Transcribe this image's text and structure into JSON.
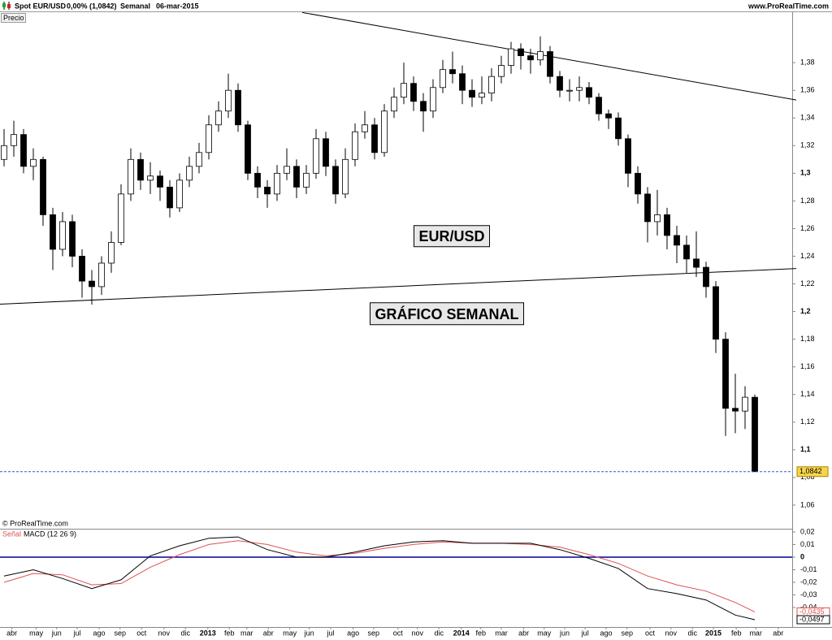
{
  "header": {
    "symbol": "Spot EUR/USD",
    "change": "0,00% (1,0842)",
    "period": "Semanal",
    "date": "06-mar-2015",
    "site": "www.ProRealTime.com",
    "pane_label": "Precio",
    "copyright": "© ProRealTime.com"
  },
  "chart_data": [
    {
      "type": "candlestick",
      "xlim": [
        -0.4167,
        80.8333
      ],
      "ylim": [
        1.0435,
        1.4165
      ],
      "yticks": [
        {
          "value": 1.06,
          "label": "1,06"
        },
        {
          "value": 1.08,
          "label": "1,08"
        },
        {
          "value": 1.1,
          "label": "1,1"
        },
        {
          "value": 1.12,
          "label": "1,12"
        },
        {
          "value": 1.14,
          "label": "1,14"
        },
        {
          "value": 1.16,
          "label": "1,16"
        },
        {
          "value": 1.18,
          "label": "1,18"
        },
        {
          "value": 1.2,
          "label": "1,2"
        },
        {
          "value": 1.22,
          "label": "1,22"
        },
        {
          "value": 1.24,
          "label": "1,24"
        },
        {
          "value": 1.26,
          "label": "1,26"
        },
        {
          "value": 1.28,
          "label": "1,28"
        },
        {
          "value": 1.3,
          "label": "1,3"
        },
        {
          "value": 1.32,
          "label": "1,32"
        },
        {
          "value": 1.34,
          "label": "1,34"
        },
        {
          "value": 1.36,
          "label": "1,36"
        },
        {
          "value": 1.38,
          "label": "1,38"
        }
      ],
      "up_color": "#ffffff",
      "down_color": "#000000",
      "open": [
        1.31,
        1.32,
        1.328,
        1.305,
        1.31,
        1.27,
        1.245,
        1.265,
        1.24,
        1.222,
        1.218,
        1.235,
        1.25,
        1.285,
        1.31,
        1.295,
        1.298,
        1.29,
        1.275,
        1.295,
        1.305,
        1.315,
        1.335,
        1.345,
        1.36,
        1.335,
        1.3,
        1.29,
        1.285,
        1.3,
        1.305,
        1.29,
        1.3,
        1.325,
        1.305,
        1.285,
        1.31,
        1.33,
        1.335,
        1.315,
        1.345,
        1.355,
        1.365,
        1.352,
        1.345,
        1.362,
        1.375,
        1.372,
        1.36,
        1.355,
        1.358,
        1.37,
        1.378,
        1.39,
        1.385,
        1.382,
        1.388,
        1.37,
        1.36,
        1.36,
        1.362,
        1.355,
        1.343,
        1.34,
        1.325,
        1.3,
        1.285,
        1.265,
        1.27,
        1.255,
        1.248,
        1.238,
        1.232,
        1.218,
        1.18,
        1.13,
        1.128,
        1.138
      ],
      "high": [
        1.332,
        1.338,
        1.332,
        1.318,
        1.312,
        1.275,
        1.272,
        1.27,
        1.245,
        1.23,
        1.24,
        1.258,
        1.292,
        1.318,
        1.315,
        1.308,
        1.302,
        1.295,
        1.3,
        1.312,
        1.322,
        1.342,
        1.352,
        1.372,
        1.365,
        1.338,
        1.305,
        1.295,
        1.306,
        1.318,
        1.31,
        1.306,
        1.332,
        1.33,
        1.31,
        1.318,
        1.336,
        1.345,
        1.34,
        1.35,
        1.362,
        1.38,
        1.37,
        1.358,
        1.368,
        1.382,
        1.388,
        1.378,
        1.368,
        1.37,
        1.376,
        1.385,
        1.395,
        1.394,
        1.39,
        1.399,
        1.392,
        1.374,
        1.368,
        1.37,
        1.366,
        1.358,
        1.346,
        1.344,
        1.328,
        1.305,
        1.29,
        1.288,
        1.275,
        1.262,
        1.255,
        1.258,
        1.236,
        1.222,
        1.185,
        1.155,
        1.146,
        1.14
      ],
      "low": [
        1.305,
        1.312,
        1.3,
        1.295,
        1.262,
        1.23,
        1.24,
        1.232,
        1.21,
        1.205,
        1.212,
        1.228,
        1.248,
        1.28,
        1.288,
        1.285,
        1.28,
        1.268,
        1.272,
        1.29,
        1.3,
        1.31,
        1.33,
        1.34,
        1.33,
        1.295,
        1.282,
        1.275,
        1.28,
        1.295,
        1.282,
        1.285,
        1.296,
        1.298,
        1.278,
        1.282,
        1.305,
        1.325,
        1.31,
        1.312,
        1.34,
        1.35,
        1.345,
        1.33,
        1.34,
        1.358,
        1.365,
        1.35,
        1.348,
        1.35,
        1.352,
        1.365,
        1.372,
        1.375,
        1.372,
        1.378,
        1.365,
        1.355,
        1.352,
        1.352,
        1.35,
        1.338,
        1.332,
        1.32,
        1.29,
        1.278,
        1.25,
        1.255,
        1.245,
        1.235,
        1.228,
        1.225,
        1.21,
        1.17,
        1.11,
        1.112,
        1.115,
        1.0842
      ],
      "close": [
        1.32,
        1.328,
        1.305,
        1.31,
        1.27,
        1.245,
        1.265,
        1.24,
        1.222,
        1.218,
        1.235,
        1.25,
        1.285,
        1.31,
        1.295,
        1.298,
        1.29,
        1.275,
        1.295,
        1.305,
        1.315,
        1.335,
        1.345,
        1.36,
        1.335,
        1.3,
        1.29,
        1.285,
        1.3,
        1.305,
        1.29,
        1.3,
        1.325,
        1.305,
        1.285,
        1.31,
        1.33,
        1.335,
        1.315,
        1.345,
        1.355,
        1.365,
        1.352,
        1.345,
        1.362,
        1.375,
        1.372,
        1.36,
        1.355,
        1.358,
        1.37,
        1.378,
        1.39,
        1.385,
        1.382,
        1.388,
        1.37,
        1.36,
        1.36,
        1.362,
        1.355,
        1.343,
        1.34,
        1.325,
        1.3,
        1.285,
        1.265,
        1.27,
        1.255,
        1.248,
        1.238,
        1.232,
        1.218,
        1.18,
        1.13,
        1.128,
        1.138,
        1.0842
      ],
      "last_price": {
        "value": 1.0842,
        "label": "1,0842",
        "color": "#3355cc"
      },
      "trendlines": [
        {
          "x": [
            30.58,
            81.25
          ],
          "y": [
            1.4163,
            1.353
          ]
        },
        {
          "x": [
            -0.4167,
            81.25
          ],
          "y": [
            1.2053,
            1.2311
          ]
        }
      ],
      "annotations": [
        "EUR/USD",
        "GRÁFICO SEMANAL"
      ]
    },
    {
      "type": "line",
      "xlim": [
        -0.4167,
        80.8333
      ],
      "ylim": [
        -0.0555,
        0.0219
      ],
      "yticks": [
        {
          "value": 0.02,
          "label": "0,02"
        },
        {
          "value": 0.01,
          "label": "0,01"
        },
        0,
        {
          "value": -0.01,
          "label": "-0,01"
        },
        {
          "value": -0.02,
          "label": "-0,02"
        },
        {
          "value": -0.03,
          "label": "-0,03"
        },
        {
          "value": -0.04,
          "label": "-0,04"
        }
      ],
      "xticks": [
        {
          "value": 0.8,
          "label": "abr"
        },
        {
          "value": 3.3,
          "label": "may"
        },
        {
          "value": 5.4,
          "label": "jun"
        },
        {
          "value": 7.5,
          "label": "jul"
        },
        {
          "value": 9.75,
          "label": "ago"
        },
        {
          "value": 11.9,
          "label": "sep"
        },
        {
          "value": 14.1,
          "label": "oct"
        },
        {
          "value": 16.4,
          "label": "nov"
        },
        {
          "value": 18.6,
          "label": "dic"
        },
        {
          "value": 20.9,
          "label": "2013"
        },
        {
          "value": 23.1,
          "label": "feb"
        },
        {
          "value": 24.9,
          "label": "mar"
        },
        {
          "value": 27.1,
          "label": "abr"
        },
        {
          "value": 29.3,
          "label": "may"
        },
        {
          "value": 31.3,
          "label": "jun"
        },
        {
          "value": 33.5,
          "label": "jul"
        },
        {
          "value": 35.8,
          "label": "ago"
        },
        {
          "value": 37.9,
          "label": "sep"
        },
        {
          "value": 40.4,
          "label": "oct"
        },
        {
          "value": 42.4,
          "label": "nov"
        },
        {
          "value": 44.6,
          "label": "dic"
        },
        {
          "value": 46.9,
          "label": "2014"
        },
        {
          "value": 48.9,
          "label": "feb"
        },
        {
          "value": 51,
          "label": "mar"
        },
        {
          "value": 53.3,
          "label": "abr"
        },
        {
          "value": 55.4,
          "label": "may"
        },
        {
          "value": 57.5,
          "label": "jun"
        },
        {
          "value": 59.6,
          "label": "jul"
        },
        {
          "value": 61.75,
          "label": "ago"
        },
        {
          "value": 63.9,
          "label": "sep"
        },
        {
          "value": 66.25,
          "label": "oct"
        },
        {
          "value": 68.4,
          "label": "nov"
        },
        {
          "value": 70.6,
          "label": "dic"
        },
        {
          "value": 72.75,
          "label": "2015"
        },
        {
          "value": 75.1,
          "label": "feb"
        },
        {
          "value": 77.1,
          "label": "mar"
        },
        {
          "value": 79.4,
          "label": "abr"
        }
      ],
      "zero_line": {
        "value": 0,
        "color": "#000099"
      },
      "x": [
        0,
        3,
        6,
        9,
        12,
        15,
        18,
        21,
        24,
        27,
        30,
        33,
        36,
        39,
        42,
        45,
        48,
        51,
        54,
        57,
        60,
        63,
        66,
        69,
        72,
        75,
        77
      ],
      "series": [
        {
          "name": "Señal",
          "color": "#e05050",
          "values": [
            -0.02,
            -0.013,
            -0.014,
            -0.022,
            -0.021,
            -0.008,
            0.002,
            0.01,
            0.013,
            0.01,
            0.004,
            0.001,
            0.003,
            0.007,
            0.01,
            0.012,
            0.011,
            0.011,
            0.01,
            0.008,
            0.002,
            -0.005,
            -0.015,
            -0.022,
            -0.027,
            -0.036,
            -0.0435
          ],
          "last_label": "-0,0435"
        },
        {
          "name": "MACD (12 26 9)",
          "color": "#000000",
          "values": [
            -0.015,
            -0.01,
            -0.017,
            -0.025,
            -0.018,
            0.001,
            0.009,
            0.015,
            0.016,
            0.006,
            0.0,
            0.0,
            0.004,
            0.009,
            0.012,
            0.013,
            0.011,
            0.011,
            0.011,
            0.006,
            -0.001,
            -0.009,
            -0.025,
            -0.029,
            -0.034,
            -0.046,
            -0.0497
          ],
          "last_label": "-0,0497"
        }
      ]
    }
  ]
}
